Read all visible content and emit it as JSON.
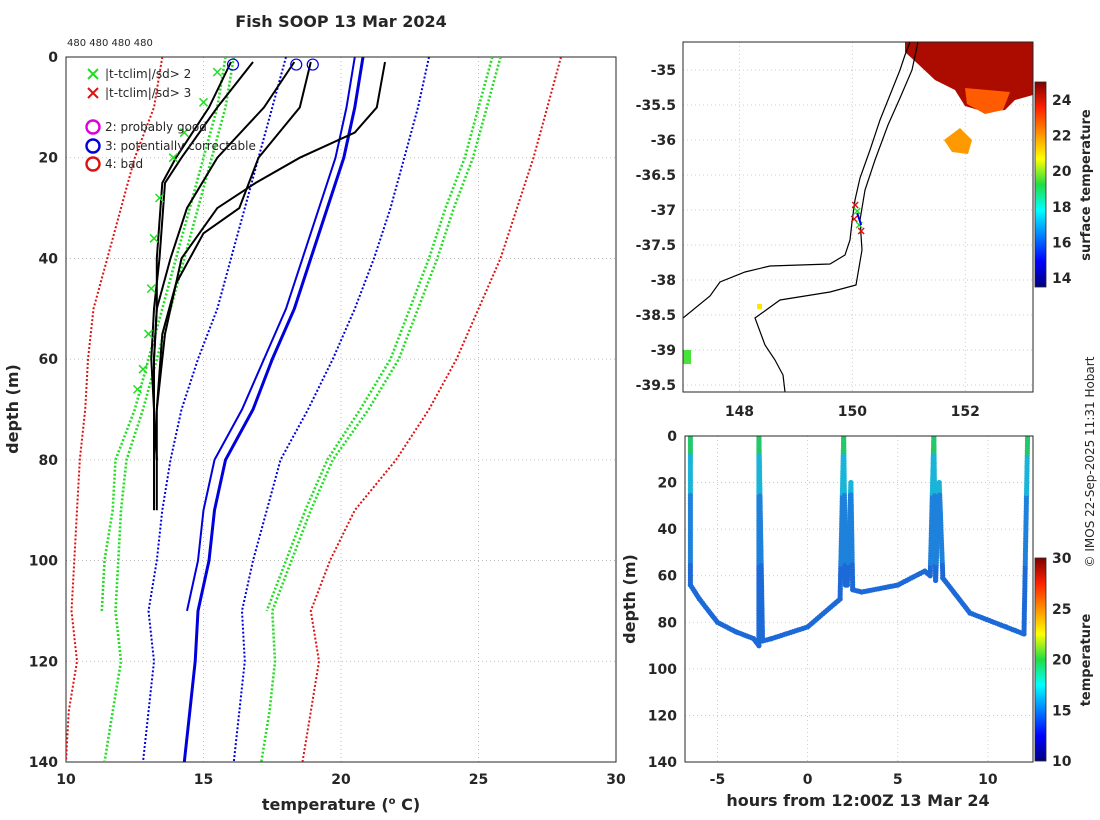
{
  "title": "Fish SOOP 13 Mar 2024",
  "drop_counts": "480 480 480 480",
  "credit": "© IMOS 22-Sep-2025 11:31 Hobart",
  "colors": {
    "green": "#22dd22",
    "red": "#dd1111",
    "blue": "#0000dd",
    "black": "#000000",
    "magenta": "#dd00dd"
  },
  "legend": [
    {
      "marker": "x",
      "color": "green",
      "label": "|t-tclim|/sd> 2"
    },
    {
      "marker": "x",
      "color": "red",
      "label": "|t-tclim|/sd> 3"
    },
    {
      "marker": "o",
      "color": "magenta",
      "label": "2: probably good"
    },
    {
      "marker": "o",
      "color": "blue",
      "label": "3: potentially correctable"
    },
    {
      "marker": "o",
      "color": "red",
      "label": "4: bad"
    }
  ],
  "chart_data": [
    {
      "id": "profiles",
      "type": "line",
      "xlabel": "temperature (o C)",
      "ylabel": "depth (m)",
      "xlim": [
        10,
        30
      ],
      "ylim": [
        140,
        0
      ],
      "xticks": [
        10,
        15,
        20,
        25,
        30
      ],
      "yticks": [
        0,
        20,
        40,
        60,
        80,
        100,
        120,
        140
      ],
      "depth": [
        0,
        10,
        20,
        30,
        40,
        50,
        60,
        70,
        80,
        90,
        100,
        110,
        120,
        130,
        140
      ],
      "climatology": {
        "mean": [
          [
            20.5,
            20.2,
            19.8,
            19.2,
            18.6,
            18.0,
            17.2,
            16.4,
            15.4,
            15.0,
            14.8,
            14.4
          ],
          [
            20.8,
            20.5,
            20.1,
            19.5,
            18.9,
            18.3,
            17.5,
            16.8,
            15.8,
            15.4,
            15.2,
            14.8,
            14.7,
            14.5,
            14.3
          ]
        ],
        "sd2": [
          [
            15.8,
            15.5,
            15.0,
            14.5,
            14.0,
            13.5,
            13.0,
            12.5,
            11.8,
            11.7,
            11.4,
            11.3
          ],
          [
            16.1,
            15.8,
            15.3,
            14.8,
            14.3,
            13.8,
            13.3,
            12.8,
            12.2,
            12.0,
            11.9,
            11.8,
            12.0,
            11.7,
            11.4
          ],
          [
            25.5,
            25.0,
            24.5,
            23.8,
            23.2,
            22.5,
            21.8,
            20.7,
            19.5,
            18.7,
            18.0,
            17.3
          ],
          [
            25.8,
            25.3,
            24.8,
            24.1,
            23.5,
            22.8,
            22.1,
            21.0,
            19.7,
            18.9,
            18.2,
            17.5,
            17.6,
            17.4,
            17.1
          ]
        ],
        "sd3": [
          [
            13.5,
            13.2,
            12.5,
            12.0,
            11.5,
            11.0,
            10.8,
            10.7,
            10.5,
            10.4,
            10.3,
            10.2,
            10.4,
            10.1,
            10.0
          ],
          [
            28.0,
            27.5,
            27.0,
            26.4,
            25.8,
            25.0,
            24.2,
            23.2,
            22.0,
            20.5,
            19.6,
            18.9,
            19.2,
            18.9,
            18.6
          ]
        ],
        "dotted_blue": [
          [
            18.0,
            17.5,
            17.0,
            16.5,
            16.0,
            15.5,
            14.8,
            14.2,
            13.8,
            13.5,
            13.3,
            13.0,
            13.2,
            13.0,
            12.8
          ],
          [
            23.2,
            22.8,
            22.3,
            21.8,
            21.2,
            20.5,
            19.7,
            18.8,
            17.8,
            17.3,
            16.8,
            16.4,
            16.5,
            16.3,
            16.1
          ]
        ]
      },
      "profiles": [
        {
          "t": [
            16.0,
            15.2,
            14.0,
            13.5,
            13.3,
            13.3,
            13.2,
            13.2,
            13.3,
            13.3
          ],
          "depth": [
            1,
            10,
            20,
            25,
            40,
            50,
            60,
            70,
            80,
            90
          ]
        },
        {
          "t": [
            16.8,
            15.5,
            14.2,
            13.6,
            13.4,
            13.2,
            13.1,
            13.2,
            13.2,
            13.2
          ],
          "depth": [
            1,
            10,
            20,
            25,
            40,
            50,
            60,
            70,
            80,
            90
          ]
        },
        {
          "t": [
            18.3,
            17.2,
            15.5,
            14.4,
            13.8,
            13.3,
            13.2,
            13.2,
            13.3
          ],
          "depth": [
            1,
            10,
            20,
            30,
            40,
            50,
            60,
            70,
            80
          ]
        },
        {
          "t": [
            18.9,
            18.5,
            17.0,
            16.3,
            15.0,
            14.0,
            13.5,
            13.3,
            13.3
          ],
          "depth": [
            1,
            10,
            20,
            30,
            35,
            45,
            55,
            70,
            80
          ]
        },
        {
          "t": [
            21.6,
            21.3,
            20.5,
            18.5,
            16.9,
            15.5,
            14.2,
            13.6,
            13.3
          ],
          "depth": [
            1,
            10,
            15,
            20,
            25,
            30,
            40,
            55,
            70
          ]
        }
      ],
      "flag_circles": [
        16.0,
        18.3,
        18.9
      ],
      "green_flags": {
        "t": [
          15.5,
          15.0,
          14.3,
          13.9,
          13.4,
          13.2,
          13.1,
          13.0,
          12.8,
          12.6
        ],
        "depth": [
          3,
          9,
          15,
          20,
          28,
          36,
          46,
          55,
          62,
          66
        ]
      },
      "flag_counts": "480 480 480 480"
    },
    {
      "id": "map",
      "type": "heatmap",
      "xlim": [
        147.0,
        153.2
      ],
      "ylim": [
        -39.6,
        -34.6
      ],
      "xticks": [
        148,
        150,
        152
      ],
      "yticks": [
        -35,
        -35.5,
        -36,
        -36.5,
        -37,
        -37.5,
        -38,
        -38.5,
        -39,
        -39.5
      ],
      "colorbar_label": "surface temperature",
      "colorbar_ticks": [
        14,
        16,
        18,
        20,
        22,
        24
      ],
      "colorbar_range": [
        13.5,
        25
      ],
      "drop_location": {
        "lon": 150.05,
        "lat": -37.1
      }
    },
    {
      "id": "depth_time",
      "type": "scatter",
      "xlabel": "hours from 12:00Z 13 Mar 24",
      "ylabel": "depth (m)",
      "xlim": [
        -6.8,
        12.5
      ],
      "ylim": [
        140,
        0
      ],
      "xticks": [
        -5,
        0,
        5,
        10
      ],
      "yticks": [
        0,
        20,
        40,
        60,
        80,
        100,
        120,
        140
      ],
      "colorbar_label": "temperature",
      "colorbar_ticks": [
        10,
        15,
        20,
        25,
        30
      ],
      "colorbar_range": [
        10,
        30
      ],
      "track": [
        [
          -6.5,
          0
        ],
        [
          -6.5,
          64
        ],
        [
          -6.0,
          70
        ],
        [
          -5.0,
          80
        ],
        [
          -4.0,
          84
        ],
        [
          -3.0,
          87
        ],
        [
          -2.7,
          90
        ],
        [
          -2.7,
          0
        ],
        [
          -2.5,
          88
        ],
        [
          -2.0,
          87
        ],
        [
          0.0,
          82
        ],
        [
          1.5,
          72
        ],
        [
          1.8,
          70
        ],
        [
          2.0,
          0
        ],
        [
          2.1,
          64
        ],
        [
          2.2,
          64
        ],
        [
          2.4,
          20
        ],
        [
          2.5,
          66
        ],
        [
          3.0,
          67
        ],
        [
          5.0,
          64
        ],
        [
          6.5,
          58
        ],
        [
          6.8,
          60
        ],
        [
          7.0,
          0
        ],
        [
          7.1,
          62
        ],
        [
          7.3,
          20
        ],
        [
          7.5,
          61
        ],
        [
          9.0,
          76
        ],
        [
          11.0,
          82
        ],
        [
          12.0,
          85
        ],
        [
          12.2,
          0
        ]
      ]
    }
  ]
}
